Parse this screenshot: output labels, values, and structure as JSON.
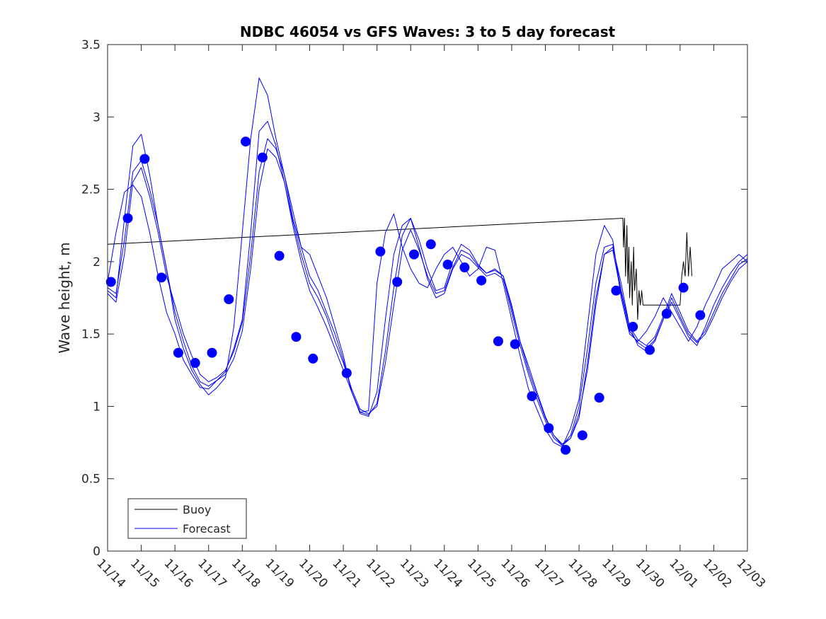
{
  "chart_data": {
    "type": "line",
    "title": "NDBC 46054 vs GFS Waves: 3 to 5 day forecast",
    "xlabel": "",
    "ylabel": "Wave height, m",
    "xlim": [
      0,
      19
    ],
    "ylim": [
      0,
      3.5
    ],
    "yticks": [
      0,
      0.5,
      1,
      1.5,
      2,
      2.5,
      3,
      3.5
    ],
    "ytick_labels": [
      "0",
      "0.5",
      "1",
      "1.5",
      "2",
      "2.5",
      "3",
      "3.5"
    ],
    "xticks": [
      0,
      1,
      2,
      3,
      4,
      5,
      6,
      7,
      8,
      9,
      10,
      11,
      12,
      13,
      14,
      15,
      16,
      17,
      18,
      19
    ],
    "xtick_labels": [
      "11/14",
      "11/15",
      "11/16",
      "11/17",
      "11/18",
      "11/19",
      "11/20",
      "11/21",
      "11/22",
      "11/23",
      "11/24",
      "11/25",
      "11/26",
      "11/27",
      "11/28",
      "11/29",
      "11/30",
      "12/01",
      "12/02",
      "12/03"
    ],
    "legend": {
      "position": "bottom-left",
      "entries": [
        {
          "label": "Buoy",
          "color": "#000000"
        },
        {
          "label": "Forecast",
          "color": "#0000ff"
        }
      ]
    },
    "colors": {
      "buoy": "#000000",
      "forecast": "#0000ff",
      "marker": "#0000ff"
    },
    "series": [
      {
        "name": "Buoy",
        "color": "#000000",
        "x": [
          0,
          15.3,
          15.32,
          15.35,
          15.38,
          15.42,
          15.45,
          15.48,
          15.5,
          15.55,
          15.58,
          15.62,
          15.65,
          15.7,
          15.74,
          15.78,
          15.82,
          15.86,
          15.9,
          15.95,
          16.0,
          17.0,
          17.05,
          17.1,
          17.15,
          17.2,
          17.25,
          17.3,
          17.35
        ],
        "y": [
          2.12,
          2.3,
          2.1,
          2.3,
          1.9,
          2.25,
          1.85,
          2.1,
          1.75,
          2.0,
          1.7,
          2.1,
          1.8,
          1.95,
          1.6,
          1.8,
          1.7,
          1.8,
          1.7,
          1.7,
          1.7,
          1.7,
          1.9,
          2.0,
          1.9,
          2.2,
          1.9,
          2.1,
          1.9
        ]
      },
      {
        "name": "Forecast run 1",
        "color": "#0000ff",
        "x": [
          0.0,
          0.25,
          0.5,
          0.75,
          1.0,
          1.25,
          1.5,
          1.75,
          2.0,
          2.25,
          2.5,
          2.75,
          3.0,
          3.25,
          3.5,
          3.75,
          4.0,
          4.25,
          4.5,
          4.75,
          5.0,
          5.25,
          5.5,
          5.75,
          6.0,
          6.25,
          6.5,
          6.75,
          7.0,
          7.25,
          7.5,
          7.75,
          8.0,
          8.25,
          8.5,
          8.75,
          9.0,
          9.25,
          9.5,
          9.75,
          10.0,
          10.25,
          10.5,
          10.75,
          11.0,
          11.25,
          11.5,
          11.75,
          12.0,
          12.25,
          12.5,
          12.75,
          13.0,
          13.25,
          13.5,
          13.75,
          14.0,
          14.25,
          14.5,
          14.75,
          15.0,
          15.25,
          15.5,
          15.75,
          16.0,
          16.25,
          16.5,
          16.75,
          17.0,
          17.25,
          17.5,
          17.75,
          18.0,
          18.25,
          18.5,
          18.75,
          19.0
        ],
        "y": [
          1.86,
          2.2,
          2.48,
          2.53,
          2.45,
          2.2,
          1.9,
          1.65,
          1.5,
          1.32,
          1.22,
          1.13,
          1.12,
          1.18,
          1.24,
          1.4,
          1.6,
          2.2,
          2.9,
          2.97,
          2.8,
          2.55,
          2.25,
          2.0,
          1.8,
          1.68,
          1.55,
          1.4,
          1.25,
          1.1,
          0.96,
          0.97,
          1.85,
          2.2,
          2.33,
          2.1,
          1.95,
          1.85,
          1.82,
          1.95,
          2.05,
          2.1,
          2.0,
          1.9,
          1.95,
          2.1,
          2.08,
          1.85,
          1.6,
          1.35,
          1.12,
          0.98,
          0.84,
          0.75,
          0.72,
          0.85,
          1.05,
          1.55,
          2.05,
          2.25,
          2.15,
          1.75,
          1.5,
          1.45,
          1.52,
          1.62,
          1.75,
          1.65,
          1.55,
          1.45,
          1.55,
          1.7,
          1.82,
          1.95,
          2.0,
          2.05,
          2.0
        ]
      },
      {
        "name": "Forecast run 2",
        "color": "#0000ff",
        "x": [
          0.0,
          0.25,
          0.5,
          0.75,
          1.0,
          1.25,
          1.5,
          1.75,
          2.0,
          2.25,
          2.5,
          2.75,
          3.0,
          3.25,
          3.5,
          3.75,
          4.0,
          4.25,
          4.5,
          4.75,
          5.0,
          5.25,
          5.5,
          5.75,
          6.0,
          6.25,
          6.5,
          6.75,
          7.0,
          7.25,
          7.5,
          7.75,
          8.0,
          8.25,
          8.5,
          8.75,
          9.0,
          9.25,
          9.5,
          9.75,
          10.0,
          10.25,
          10.5,
          10.75,
          11.0,
          11.25,
          11.5,
          11.75,
          12.0,
          12.25,
          12.5,
          12.75,
          13.0,
          13.25,
          13.5,
          13.75,
          14.0,
          14.25,
          14.5,
          14.75,
          15.0,
          15.25,
          15.5,
          15.75,
          16.0,
          16.25,
          16.5,
          16.75,
          17.0,
          17.25,
          17.5,
          17.75,
          18.0,
          18.25,
          18.5,
          18.75,
          19.0
        ],
        "y": [
          1.8,
          1.75,
          2.3,
          2.8,
          2.88,
          2.6,
          2.25,
          1.95,
          1.6,
          1.4,
          1.25,
          1.15,
          1.08,
          1.13,
          1.2,
          1.55,
          2.2,
          2.85,
          3.27,
          3.15,
          2.85,
          2.6,
          2.3,
          2.1,
          2.05,
          1.9,
          1.75,
          1.55,
          1.35,
          1.1,
          0.95,
          0.93,
          1.1,
          1.6,
          2.05,
          2.25,
          2.3,
          2.15,
          1.95,
          1.8,
          1.82,
          2.0,
          2.12,
          2.08,
          1.98,
          1.92,
          1.95,
          1.9,
          1.7,
          1.45,
          1.28,
          1.1,
          0.93,
          0.8,
          0.73,
          0.78,
          0.95,
          1.25,
          1.7,
          2.05,
          2.1,
          1.85,
          1.55,
          1.42,
          1.38,
          1.45,
          1.6,
          1.72,
          1.6,
          1.48,
          1.42,
          1.55,
          1.7,
          1.82,
          1.92,
          2.0,
          2.05
        ]
      },
      {
        "name": "Forecast run 3",
        "color": "#0000ff",
        "x": [
          0.0,
          0.25,
          0.5,
          0.75,
          1.0,
          1.25,
          1.5,
          1.75,
          2.0,
          2.25,
          2.5,
          2.75,
          3.0,
          3.25,
          3.5,
          3.75,
          4.0,
          4.25,
          4.5,
          4.75,
          5.0,
          5.25,
          5.5,
          5.75,
          6.0,
          6.25,
          6.5,
          6.75,
          7.0,
          7.25,
          7.5,
          7.75,
          8.0,
          8.25,
          8.5,
          8.75,
          9.0,
          9.25,
          9.5,
          9.75,
          10.0,
          10.25,
          10.5,
          10.75,
          11.0,
          11.25,
          11.5,
          11.75,
          12.0,
          12.25,
          12.5,
          12.75,
          13.0,
          13.25,
          13.5,
          13.75,
          14.0,
          14.25,
          14.5,
          14.75,
          15.0,
          15.25,
          15.5,
          15.75,
          16.0,
          16.25,
          16.5,
          16.75,
          17.0,
          17.25,
          17.5,
          17.75,
          18.0,
          18.25,
          18.5,
          18.75,
          19.0
        ],
        "y": [
          1.78,
          1.72,
          2.05,
          2.55,
          2.65,
          2.45,
          2.2,
          1.9,
          1.7,
          1.5,
          1.35,
          1.22,
          1.17,
          1.2,
          1.25,
          1.38,
          1.58,
          2.05,
          2.62,
          2.85,
          2.78,
          2.6,
          2.35,
          2.1,
          1.9,
          1.8,
          1.65,
          1.5,
          1.32,
          1.1,
          0.96,
          0.94,
          1.02,
          1.38,
          1.82,
          2.18,
          2.3,
          2.1,
          1.88,
          1.75,
          1.78,
          1.95,
          2.05,
          2.02,
          1.96,
          1.9,
          1.92,
          1.88,
          1.65,
          1.42,
          1.22,
          1.05,
          0.9,
          0.78,
          0.73,
          0.8,
          1.0,
          1.4,
          1.85,
          2.1,
          2.12,
          1.8,
          1.55,
          1.46,
          1.42,
          1.48,
          1.62,
          1.78,
          1.65,
          1.52,
          1.45,
          1.52,
          1.65,
          1.78,
          1.88,
          1.98,
          2.02
        ]
      },
      {
        "name": "Forecast run 4",
        "color": "#0000ff",
        "x": [
          0.0,
          0.25,
          0.5,
          0.75,
          1.0,
          1.25,
          1.5,
          1.75,
          2.0,
          2.25,
          2.5,
          2.75,
          3.0,
          3.25,
          3.5,
          3.75,
          4.0,
          4.25,
          4.5,
          4.75,
          5.0,
          5.25,
          5.5,
          5.75,
          6.0,
          6.25,
          6.5,
          6.75,
          7.0,
          7.25,
          7.5,
          7.75,
          8.0,
          8.25,
          8.5,
          8.75,
          9.0,
          9.25,
          9.5,
          9.75,
          10.0,
          10.25,
          10.5,
          10.75,
          11.0,
          11.25,
          11.5,
          11.75,
          12.0,
          12.25,
          12.5,
          12.75,
          13.0,
          13.25,
          13.5,
          13.75,
          14.0,
          14.25,
          14.5,
          14.75,
          15.0,
          15.25,
          15.5,
          15.75,
          16.0,
          16.25,
          16.5,
          16.75,
          17.0,
          17.25,
          17.5,
          17.75,
          18.0,
          18.25,
          18.5,
          18.75,
          19.0
        ],
        "y": [
          1.82,
          1.78,
          2.15,
          2.62,
          2.7,
          2.5,
          2.25,
          1.95,
          1.65,
          1.45,
          1.28,
          1.17,
          1.14,
          1.18,
          1.22,
          1.33,
          1.52,
          1.95,
          2.5,
          2.78,
          2.72,
          2.55,
          2.28,
          2.05,
          1.85,
          1.75,
          1.62,
          1.45,
          1.3,
          1.12,
          0.98,
          0.95,
          1.0,
          1.3,
          1.7,
          2.08,
          2.22,
          2.08,
          1.9,
          1.78,
          1.8,
          1.96,
          2.08,
          2.05,
          1.97,
          1.92,
          1.94,
          1.9,
          1.68,
          1.45,
          1.25,
          1.08,
          0.92,
          0.8,
          0.74,
          0.78,
          0.92,
          1.3,
          1.75,
          2.05,
          2.08,
          1.78,
          1.52,
          1.44,
          1.4,
          1.46,
          1.6,
          1.75,
          1.62,
          1.5,
          1.44,
          1.5,
          1.62,
          1.75,
          1.86,
          1.95,
          2.0
        ]
      }
    ],
    "markers": {
      "name": "Forecast points",
      "color": "#0000ff",
      "x": [
        0.1,
        0.6,
        1.1,
        1.6,
        2.1,
        2.6,
        3.1,
        3.6,
        4.1,
        4.6,
        5.1,
        5.6,
        6.1,
        7.1,
        8.1,
        8.6,
        9.1,
        9.6,
        10.1,
        10.6,
        11.1,
        11.6,
        12.1,
        12.6,
        13.1,
        13.6,
        14.1,
        14.6,
        15.1,
        15.6,
        16.1,
        16.6,
        17.1,
        17.6
      ],
      "y": [
        1.86,
        2.3,
        2.71,
        1.89,
        1.37,
        1.3,
        1.37,
        1.74,
        2.83,
        2.72,
        2.04,
        1.48,
        1.33,
        1.23,
        2.07,
        1.86,
        2.05,
        2.12,
        1.98,
        1.96,
        1.87,
        1.45,
        1.43,
        1.07,
        0.85,
        0.7,
        0.8,
        1.06,
        1.8,
        1.55,
        1.39,
        1.64,
        1.82,
        1.63
      ]
    }
  }
}
